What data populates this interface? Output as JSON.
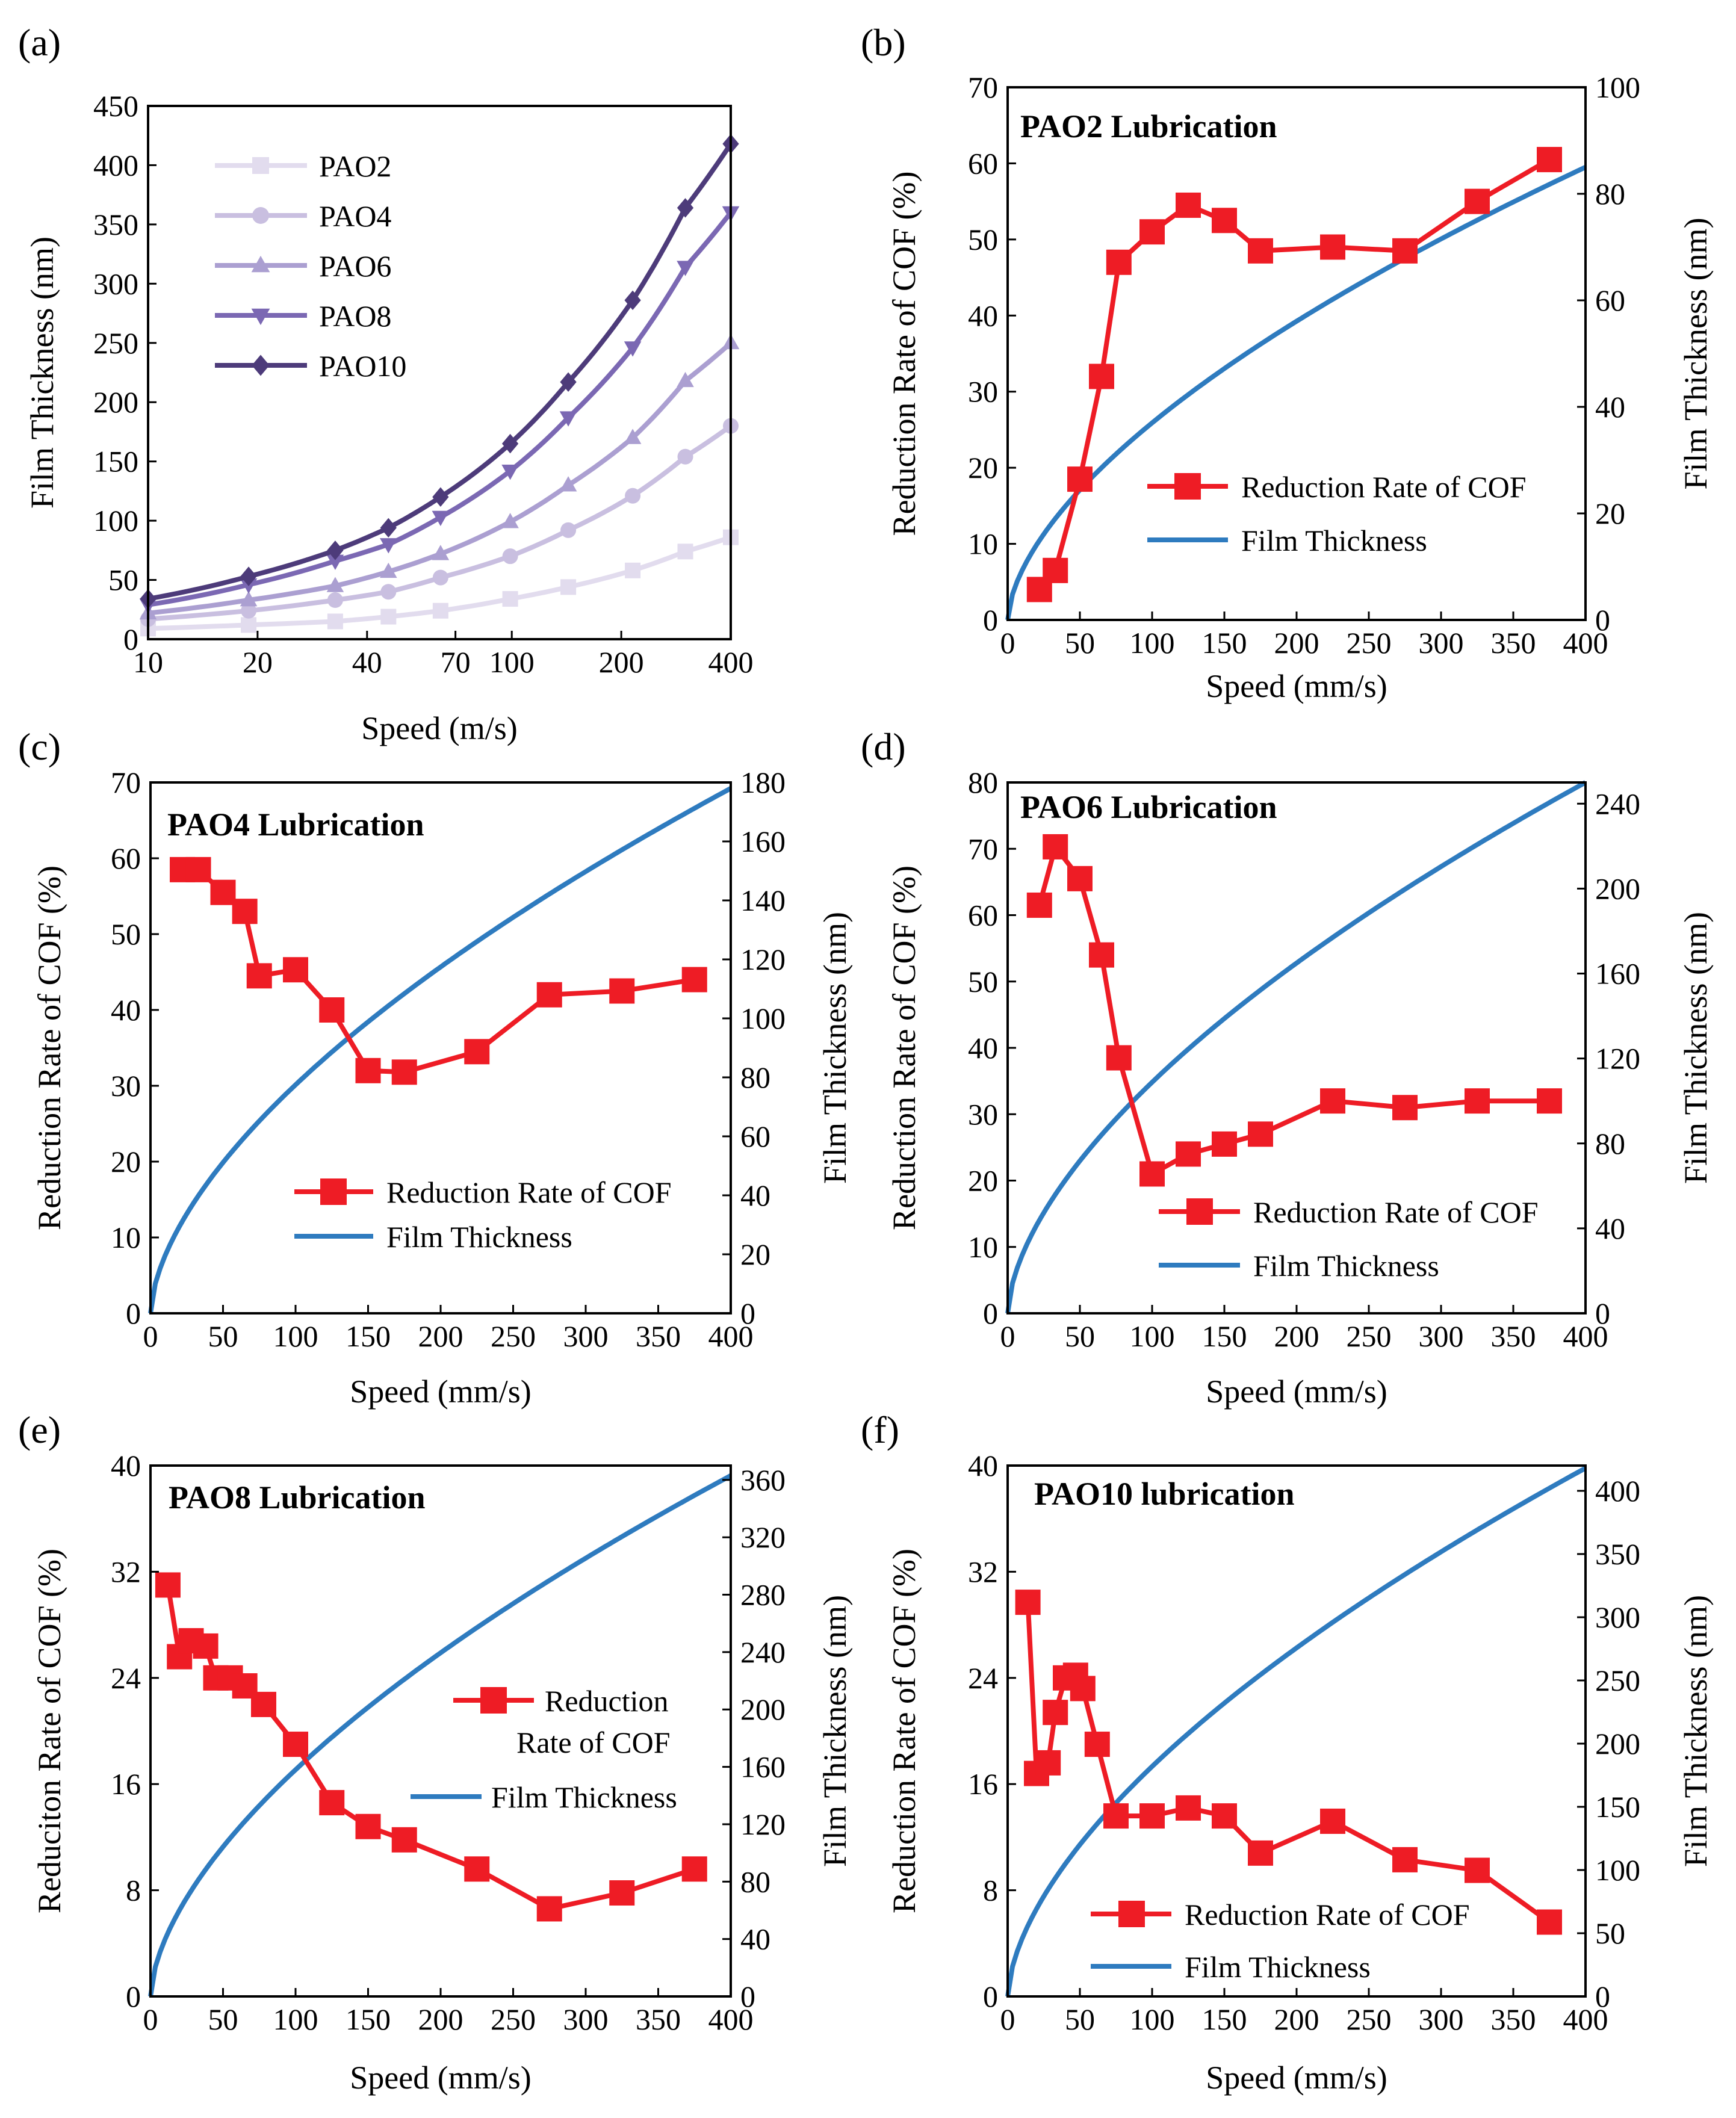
{
  "chart_data": [
    {
      "panel": "(a)",
      "type": "line",
      "xscale": "log",
      "xlabel": "Speed (m/s)",
      "ylabel": "Film Thickness (nm)",
      "xlim": [
        10,
        400
      ],
      "ylim": [
        0,
        450
      ],
      "xticks": [
        10,
        20,
        40,
        70,
        100,
        200,
        400
      ],
      "xtick_labels": [
        "10",
        "20",
        "40",
        "70",
        "100",
        "200",
        "400"
      ],
      "yticks": [
        0,
        50,
        100,
        150,
        200,
        250,
        300,
        350,
        400,
        450
      ],
      "ytick_labels": [
        "0",
        "50",
        "100",
        "150",
        "200",
        "250",
        "300",
        "350",
        "400",
        "450"
      ],
      "legend_position": "upper-left",
      "x": [
        10,
        18.9,
        32.7,
        45.8,
        63.7,
        99,
        143,
        215,
        300,
        400
      ],
      "series": [
        {
          "name": "PAO2",
          "marker": "square",
          "color": "#e2dcee",
          "values": [
            9,
            12,
            15,
            19,
            24,
            34,
            44,
            58,
            74,
            86
          ]
        },
        {
          "name": "PAO4",
          "marker": "circle",
          "color": "#c9bfe0",
          "values": [
            17,
            24,
            33,
            40,
            52,
            70,
            92,
            121,
            154,
            180
          ]
        },
        {
          "name": "PAO6",
          "marker": "triangle-up",
          "color": "#ab9fd1",
          "values": [
            22,
            33,
            45,
            57,
            72,
            99,
            130,
            170,
            218,
            250
          ]
        },
        {
          "name": "PAO8",
          "marker": "triangle-down",
          "color": "#7b68b3",
          "values": [
            29,
            46,
            66,
            80,
            103,
            142,
            187,
            246,
            314,
            360
          ]
        },
        {
          "name": "PAO10",
          "marker": "diamond",
          "color": "#4d3b7a",
          "values": [
            34,
            53,
            75,
            94,
            120,
            165,
            217,
            286,
            364,
            418
          ]
        }
      ]
    },
    {
      "panel": "(b)",
      "type": "line",
      "title": "PAO2 Lubrication",
      "xlabel": "Speed (mm/s)",
      "ylabel": "Reduction Rate of COF (%)",
      "ylabel_right": "Film Thickness (nm)",
      "xlim": [
        0,
        400
      ],
      "ylim": [
        0,
        70
      ],
      "ylim_right": [
        0,
        100
      ],
      "xticks": [
        0,
        50,
        100,
        150,
        200,
        250,
        300,
        350,
        400
      ],
      "xtick_labels": [
        "0",
        "50",
        "100",
        "150",
        "200",
        "250",
        "300",
        "350",
        "400"
      ],
      "yticks": [
        0,
        10,
        20,
        30,
        40,
        50,
        60,
        70
      ],
      "ytick_labels": [
        "0",
        "10",
        "20",
        "30",
        "40",
        "50",
        "60",
        "70"
      ],
      "yticks_right": [
        0,
        20,
        40,
        60,
        80,
        100
      ],
      "ytick_labels_right": [
        "0",
        "20",
        "40",
        "60",
        "80",
        "100"
      ],
      "legend": [
        "Reduction Rate of COF",
        "Film Thickness"
      ],
      "legend_position": "lower-right",
      "cof_x": [
        22,
        33,
        50,
        65,
        77,
        100,
        125,
        150,
        175,
        225,
        275,
        325,
        375
      ],
      "cof_y": [
        4,
        6.5,
        18.5,
        32,
        47,
        51,
        54.5,
        52.5,
        48.5,
        49,
        48.5,
        55,
        60.5
      ],
      "film_max": 85
    },
    {
      "panel": "(c)",
      "type": "line",
      "title": "PAO4 Lubrication",
      "xlabel": "Speed (mm/s)",
      "ylabel": "Reduction Rate of COF (%)",
      "ylabel_right": "Film Thickness (nm)",
      "xlim": [
        0,
        400
      ],
      "ylim": [
        0,
        70
      ],
      "ylim_right": [
        0,
        180
      ],
      "xticks": [
        0,
        50,
        100,
        150,
        200,
        250,
        300,
        350,
        400
      ],
      "xtick_labels": [
        "0",
        "50",
        "100",
        "150",
        "200",
        "250",
        "300",
        "350",
        "400"
      ],
      "yticks": [
        0,
        10,
        20,
        30,
        40,
        50,
        60,
        70
      ],
      "ytick_labels": [
        "0",
        "10",
        "20",
        "30",
        "40",
        "50",
        "60",
        "70"
      ],
      "yticks_right": [
        0,
        20,
        40,
        60,
        80,
        100,
        120,
        140,
        160,
        180
      ],
      "ytick_labels_right": [
        "0",
        "20",
        "40",
        "60",
        "80",
        "100",
        "120",
        "140",
        "160",
        "180"
      ],
      "legend": [
        "Reduction Rate of COF",
        "Film Thickness"
      ],
      "legend_position": "lower-right",
      "cof_x": [
        22,
        33,
        50,
        65,
        75,
        100,
        125,
        150,
        175,
        225,
        275,
        325,
        375
      ],
      "cof_y": [
        58.5,
        58.5,
        55.5,
        53,
        44.5,
        45.3,
        40,
        32,
        31.8,
        34.5,
        42,
        42.5,
        44
      ],
      "film_max": 178
    },
    {
      "panel": "(d)",
      "type": "line",
      "title": "PAO6 Lubrication",
      "xlabel": "Speed (mm/s)",
      "ylabel": "Reduction Rate of COF (%)",
      "ylabel_right": "Film Thickness (nm)",
      "xlim": [
        0,
        400
      ],
      "ylim": [
        0,
        80
      ],
      "ylim_right": [
        0,
        250
      ],
      "xticks": [
        0,
        50,
        100,
        150,
        200,
        250,
        300,
        350,
        400
      ],
      "xtick_labels": [
        "0",
        "50",
        "100",
        "150",
        "200",
        "250",
        "300",
        "350",
        "400"
      ],
      "yticks": [
        0,
        10,
        20,
        30,
        40,
        50,
        60,
        70,
        80
      ],
      "ytick_labels": [
        "0",
        "10",
        "20",
        "30",
        "40",
        "50",
        "60",
        "70",
        "80"
      ],
      "yticks_right": [
        0,
        40,
        80,
        120,
        160,
        200,
        240
      ],
      "ytick_labels_right": [
        "0",
        "40",
        "80",
        "120",
        "160",
        "200",
        "240"
      ],
      "legend": [
        "Reduction Rate of COF",
        "Film Thickness"
      ],
      "legend_position": "lower-right",
      "cof_x": [
        22,
        33,
        50,
        65,
        77,
        100,
        125,
        150,
        175,
        225,
        275,
        325,
        375
      ],
      "cof_y": [
        61.5,
        70.3,
        65.5,
        54,
        38.5,
        21,
        24,
        25.5,
        27,
        32,
        31,
        32,
        32
      ],
      "film_max": 250
    },
    {
      "panel": "(e)",
      "type": "line",
      "title": "PAO8 Lubrication",
      "xlabel": "Speed (mm/s)",
      "ylabel": "Reduciton Rate of COF (%)",
      "ylabel_right": "Film Thickness (nm)",
      "xlim": [
        0,
        400
      ],
      "ylim": [
        0,
        40
      ],
      "ylim_right": [
        0,
        370
      ],
      "xticks": [
        0,
        50,
        100,
        150,
        200,
        250,
        300,
        350,
        400
      ],
      "xtick_labels": [
        "0",
        "50",
        "100",
        "150",
        "200",
        "250",
        "300",
        "350",
        "400"
      ],
      "yticks": [
        0,
        8,
        16,
        24,
        32,
        40
      ],
      "ytick_labels": [
        "0",
        "8",
        "16",
        "24",
        "32",
        "40"
      ],
      "yticks_right": [
        0,
        40,
        80,
        120,
        160,
        200,
        240,
        280,
        320,
        360
      ],
      "ytick_labels_right": [
        "0",
        "40",
        "80",
        "120",
        "160",
        "200",
        "240",
        "280",
        "320",
        "360"
      ],
      "legend": [
        "Reduction",
        "Rate of COF",
        "Film Thickness"
      ],
      "legend_position": "center-right",
      "cof_x": [
        12,
        20,
        28,
        38,
        45,
        55,
        65,
        78,
        100,
        125,
        150,
        175,
        225,
        275,
        325,
        375
      ],
      "cof_y": [
        31,
        25.6,
        26.8,
        26.4,
        24,
        24,
        23.4,
        22,
        19,
        14.6,
        12.8,
        11.8,
        9.6,
        6.6,
        7.8,
        9.6
      ],
      "film_max": 363
    },
    {
      "panel": "(f)",
      "type": "line",
      "title": "PAO10 lubrication",
      "xlabel": "Speed (mm/s)",
      "ylabel": "Reduction Rate of COF (%)",
      "ylabel_right": "Film Thickness (nm)",
      "xlim": [
        0,
        400
      ],
      "ylim": [
        0,
        40
      ],
      "ylim_right": [
        0,
        420
      ],
      "xticks": [
        0,
        50,
        100,
        150,
        200,
        250,
        300,
        350,
        400
      ],
      "xtick_labels": [
        "0",
        "50",
        "100",
        "150",
        "200",
        "250",
        "300",
        "350",
        "400"
      ],
      "yticks": [
        0,
        8,
        16,
        24,
        32,
        40
      ],
      "ytick_labels": [
        "0",
        "8",
        "16",
        "24",
        "32",
        "40"
      ],
      "yticks_right": [
        0,
        50,
        100,
        150,
        200,
        250,
        300,
        350,
        400
      ],
      "ytick_labels_right": [
        "0",
        "50",
        "100",
        "150",
        "200",
        "250",
        "300",
        "350",
        "400"
      ],
      "legend": [
        "Reduction Rate of COF",
        "Film Thickness"
      ],
      "legend_position": "lower-right",
      "cof_x": [
        14,
        20,
        28,
        33,
        40,
        47,
        52,
        62,
        75,
        100,
        125,
        150,
        175,
        225,
        275,
        325,
        375
      ],
      "cof_y": [
        29.7,
        16.8,
        17.6,
        21.4,
        24,
        24.2,
        23.2,
        19,
        13.6,
        13.6,
        14.2,
        13.6,
        10.8,
        13.2,
        10.3,
        9.5,
        5.6
      ],
      "film_max": 418
    }
  ],
  "colors": {
    "cof": "#ee1c25",
    "film": "#2e7bbf",
    "axis": "#000000"
  }
}
